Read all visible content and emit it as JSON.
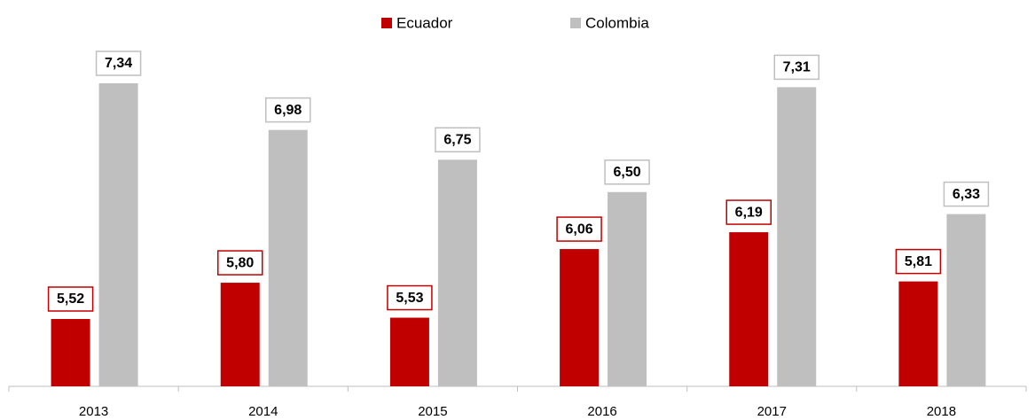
{
  "chart_data": {
    "type": "bar",
    "categories": [
      "2013",
      "2014",
      "2015",
      "2016",
      "2017",
      "2018"
    ],
    "series": [
      {
        "name": "Ecuador",
        "color": "#c00000",
        "values": [
          5.52,
          5.8,
          5.53,
          6.06,
          6.19,
          5.81
        ],
        "value_labels": [
          "5,52",
          "5,80",
          "5,53",
          "6,06",
          "6,19",
          "5,81"
        ]
      },
      {
        "name": "Colombia",
        "color": "#bfbfbf",
        "values": [
          7.34,
          6.98,
          6.75,
          6.5,
          7.31,
          6.33
        ],
        "value_labels": [
          "7,34",
          "6,98",
          "6,75",
          "6,50",
          "7,31",
          "6,33"
        ]
      }
    ],
    "ylim": [
      5,
      7.6
    ],
    "legend": "top"
  }
}
